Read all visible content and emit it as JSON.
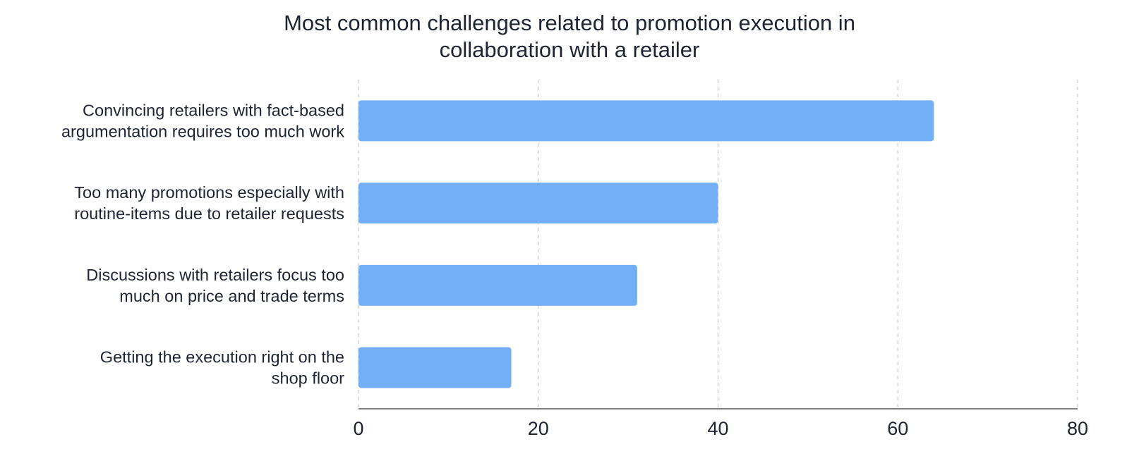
{
  "chart_data": {
    "type": "bar",
    "orientation": "horizontal",
    "title_lines": [
      "Most common challenges related to promotion execution in",
      "collaboration with a retailer"
    ],
    "categories": [
      [
        "Convincing retailers with fact-based",
        "argumentation requires too much work"
      ],
      [
        "Too many promotions especially with",
        "routine-items due to retailer requests"
      ],
      [
        "Discussions with retailers focus too",
        "much on price and trade terms"
      ],
      [
        "Getting the execution right on the",
        "shop floor"
      ]
    ],
    "values": [
      64,
      40,
      31,
      17
    ],
    "xlim": [
      0,
      80
    ],
    "xticks": [
      "0",
      "20",
      "40",
      "60",
      "80"
    ],
    "xlabel": "",
    "ylabel": "",
    "grid": "vertical-dashed",
    "bar_color": "#74aef5",
    "grid_color": "#c8c8c8",
    "axis_color": "#555555"
  }
}
